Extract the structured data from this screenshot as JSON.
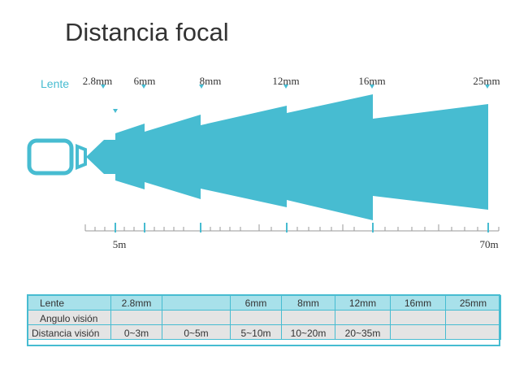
{
  "title": "Distancia focal",
  "lens_label": "Lente",
  "focal_labels": [
    "2.8mm",
    "6mm",
    "8mm",
    "12mm",
    "16mm",
    "25mm"
  ],
  "distance_labels": [
    "5m",
    "70m"
  ],
  "colors": {
    "accent": "#47bcd1",
    "header_bg": "#a8e1ea",
    "row_bg": "#e4e4e4"
  },
  "table": {
    "headers": [
      "Lente",
      "2.8mm",
      "",
      "6mm",
      "8mm",
      "12mm",
      "16mm",
      "25mm"
    ],
    "rows": [
      [
        "Angulo visión",
        "",
        "",
        "",
        "",
        "",
        "",
        ""
      ],
      [
        "Distancia visión",
        "0~3m",
        "0~5m",
        "5~10m",
        "10~20m",
        "20~35m",
        "",
        ""
      ]
    ]
  }
}
